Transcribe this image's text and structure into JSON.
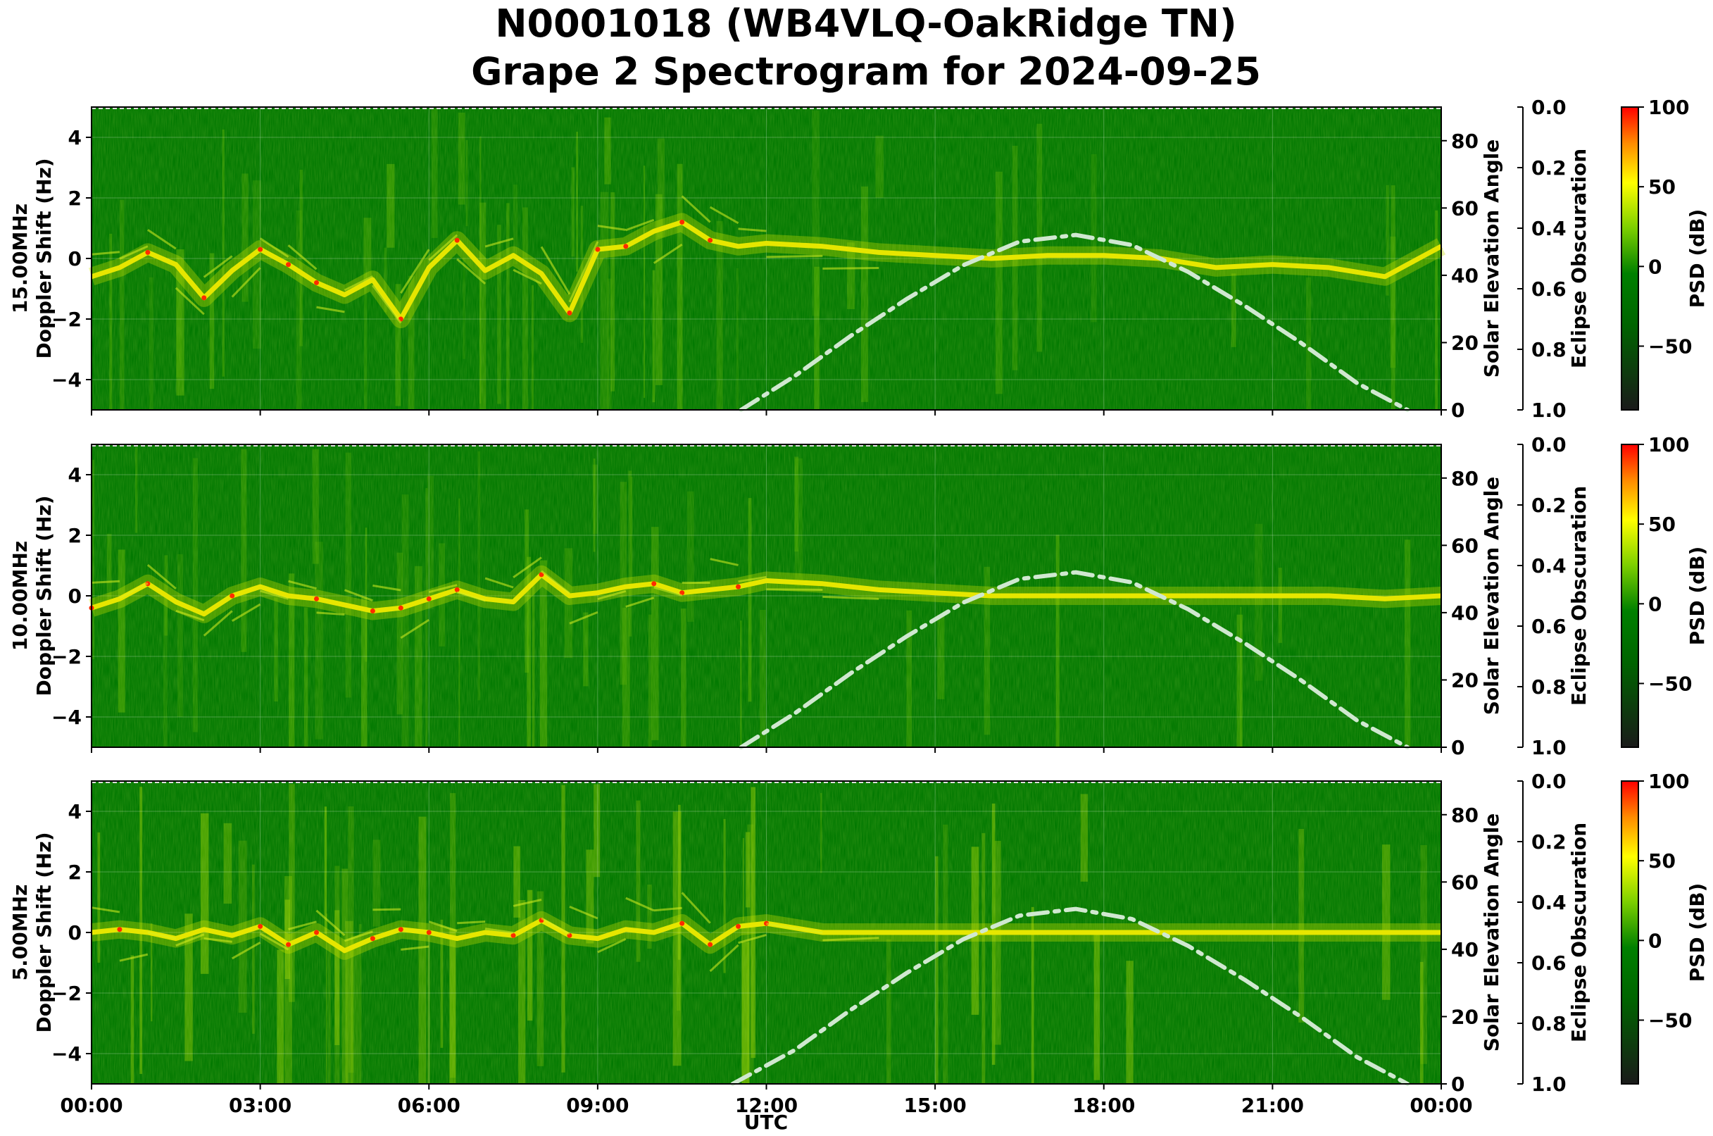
{
  "title_line1": "N0001018 (WB4VLQ-OakRidge TN)",
  "title_line2": "Grape 2 Spectrogram for 2024-09-25",
  "xlabel": "UTC",
  "x_ticks": [
    "00:00",
    "03:00",
    "06:00",
    "09:00",
    "12:00",
    "15:00",
    "18:00",
    "21:00",
    "00:00"
  ],
  "colors": {
    "background": "#007800",
    "signal": "#e6e600",
    "peak": "#ff2a00",
    "solar_curve": "#d0e8d0",
    "colormap": [
      "#1a1a1a",
      "#006400",
      "#008000",
      "#7ccf00",
      "#ffff00",
      "#ff8c00",
      "#ff0000"
    ]
  },
  "chart_data": [
    {
      "type": "heatmap",
      "panel": "15.00MHz",
      "ylabel": "15.00MHz\nDoppler Shift (Hz)",
      "ylim": [
        -5,
        5
      ],
      "y_ticks": [
        4,
        2,
        0,
        -2,
        -4
      ],
      "x_range_hours": [
        0,
        24
      ],
      "doppler_trace": {
        "hours": [
          0,
          0.5,
          1,
          1.5,
          2,
          2.5,
          3,
          3.5,
          4,
          4.5,
          5,
          5.5,
          6,
          6.5,
          7,
          7.5,
          8,
          8.5,
          9,
          9.5,
          10,
          10.5,
          11,
          11.5,
          12,
          13,
          14,
          15,
          16,
          17,
          18,
          19,
          20,
          21,
          22,
          23,
          24
        ],
        "hz": [
          -0.6,
          -0.3,
          0.2,
          -0.2,
          -1.3,
          -0.4,
          0.3,
          -0.2,
          -0.8,
          -1.2,
          -0.7,
          -2.0,
          -0.3,
          0.6,
          -0.4,
          0.1,
          -0.5,
          -1.8,
          0.3,
          0.4,
          0.9,
          1.2,
          0.6,
          0.4,
          0.5,
          0.4,
          0.2,
          0.1,
          0.0,
          0.1,
          0.1,
          0.0,
          -0.3,
          -0.2,
          -0.3,
          -0.6,
          0.4
        ]
      },
      "solar_elevation": {
        "ylabel": "Solar Elevation Angle",
        "ylim": [
          0,
          90
        ],
        "ticks": [
          80,
          60,
          40,
          20,
          0
        ],
        "hours": [
          11.55,
          12.5,
          13.5,
          14.5,
          15.5,
          16.5,
          17.5,
          18.5,
          19.5,
          20.5,
          21.5,
          22.5,
          23.4
        ],
        "deg": [
          0,
          10,
          22,
          33,
          43,
          50,
          52,
          49,
          41,
          31,
          20,
          8,
          0
        ]
      },
      "eclipse": {
        "ylabel": "Eclipse Obscuration",
        "ylim": [
          1.0,
          0.0
        ],
        "ticks": [
          "0.0",
          "0.2",
          "0.4",
          "0.6",
          "0.8",
          "1.0"
        ]
      },
      "colorbar": {
        "label": "PSD (dB)",
        "range": [
          -90,
          100
        ],
        "ticks": [
          "100",
          "50",
          "0",
          "−50"
        ]
      }
    },
    {
      "type": "heatmap",
      "panel": "10.00MHz",
      "ylabel": "10.00MHz\nDoppler Shift (Hz)",
      "ylim": [
        -5,
        5
      ],
      "y_ticks": [
        4,
        2,
        0,
        -2,
        -4
      ],
      "x_range_hours": [
        0,
        24
      ],
      "doppler_trace": {
        "hours": [
          0,
          0.5,
          1,
          1.5,
          2,
          2.5,
          3,
          3.5,
          4,
          4.5,
          5,
          5.5,
          6,
          6.5,
          7,
          7.5,
          8,
          8.5,
          9,
          9.5,
          10,
          10.5,
          11,
          11.5,
          12,
          13,
          14,
          15,
          16,
          17,
          18,
          19,
          20,
          21,
          22,
          23,
          24
        ],
        "hz": [
          -0.4,
          -0.1,
          0.4,
          -0.2,
          -0.6,
          0.0,
          0.3,
          0.0,
          -0.1,
          -0.3,
          -0.5,
          -0.4,
          -0.1,
          0.2,
          -0.1,
          -0.2,
          0.7,
          0.0,
          0.1,
          0.3,
          0.4,
          0.1,
          0.2,
          0.3,
          0.5,
          0.4,
          0.2,
          0.1,
          0.0,
          0.0,
          0.0,
          0.0,
          0.0,
          0.0,
          0.0,
          -0.1,
          0.0
        ]
      },
      "solar_elevation": {
        "ylabel": "Solar Elevation Angle",
        "ylim": [
          0,
          90
        ],
        "ticks": [
          80,
          60,
          40,
          20,
          0
        ],
        "hours": [
          11.55,
          12.5,
          13.5,
          14.5,
          15.5,
          16.5,
          17.5,
          18.5,
          19.5,
          20.5,
          21.5,
          22.5,
          23.4
        ],
        "deg": [
          0,
          10,
          22,
          33,
          43,
          50,
          52,
          49,
          41,
          31,
          20,
          8,
          0
        ]
      },
      "eclipse": {
        "ylabel": "Eclipse Obscuration",
        "ylim": [
          1.0,
          0.0
        ],
        "ticks": [
          "0.0",
          "0.2",
          "0.4",
          "0.6",
          "0.8",
          "1.0"
        ]
      },
      "colorbar": {
        "label": "PSD (dB)",
        "range": [
          -90,
          100
        ],
        "ticks": [
          "100",
          "50",
          "0",
          "−50"
        ]
      }
    },
    {
      "type": "heatmap",
      "panel": "5.00MHz",
      "ylabel": "5.00MHz\nDoppler Shift (Hz)",
      "ylim": [
        -5,
        5
      ],
      "y_ticks": [
        4,
        2,
        0,
        -2,
        -4
      ],
      "x_range_hours": [
        0,
        24
      ],
      "doppler_trace": {
        "hours": [
          0,
          0.5,
          1,
          1.5,
          2,
          2.5,
          3,
          3.5,
          4,
          4.5,
          5,
          5.5,
          6,
          6.5,
          7,
          7.5,
          8,
          8.5,
          9,
          9.5,
          10,
          10.5,
          11,
          11.5,
          12,
          13,
          14,
          15,
          16,
          17,
          18,
          19,
          20,
          21,
          22,
          23,
          24
        ],
        "hz": [
          0.0,
          0.1,
          0.0,
          -0.2,
          0.1,
          -0.1,
          0.2,
          -0.4,
          0.0,
          -0.6,
          -0.2,
          0.1,
          0.0,
          -0.2,
          0.0,
          -0.1,
          0.4,
          -0.1,
          -0.2,
          0.1,
          0.0,
          0.3,
          -0.4,
          0.2,
          0.3,
          0.0,
          0.0,
          0.0,
          0.0,
          0.0,
          0.0,
          0.0,
          0.0,
          0.0,
          0.0,
          0.0,
          0.0
        ]
      },
      "solar_elevation": {
        "ylabel": "Solar Elevation Angle",
        "ylim": [
          0,
          90
        ],
        "ticks": [
          80,
          60,
          40,
          20,
          0
        ],
        "hours": [
          11.4,
          12.5,
          13.5,
          14.5,
          15.5,
          16.5,
          17.5,
          18.5,
          19.5,
          20.5,
          21.5,
          22.5,
          23.4
        ],
        "deg": [
          0,
          10,
          22,
          33,
          43,
          50,
          52,
          49,
          41,
          31,
          20,
          8,
          0
        ]
      },
      "eclipse": {
        "ylabel": "Eclipse Obscuration",
        "ylim": [
          1.0,
          0.0
        ],
        "ticks": [
          "0.0",
          "0.2",
          "0.4",
          "0.6",
          "0.8",
          "1.0"
        ]
      },
      "colorbar": {
        "label": "PSD (dB)",
        "range": [
          -90,
          100
        ],
        "ticks": [
          "100",
          "50",
          "0",
          "−50"
        ]
      }
    }
  ]
}
